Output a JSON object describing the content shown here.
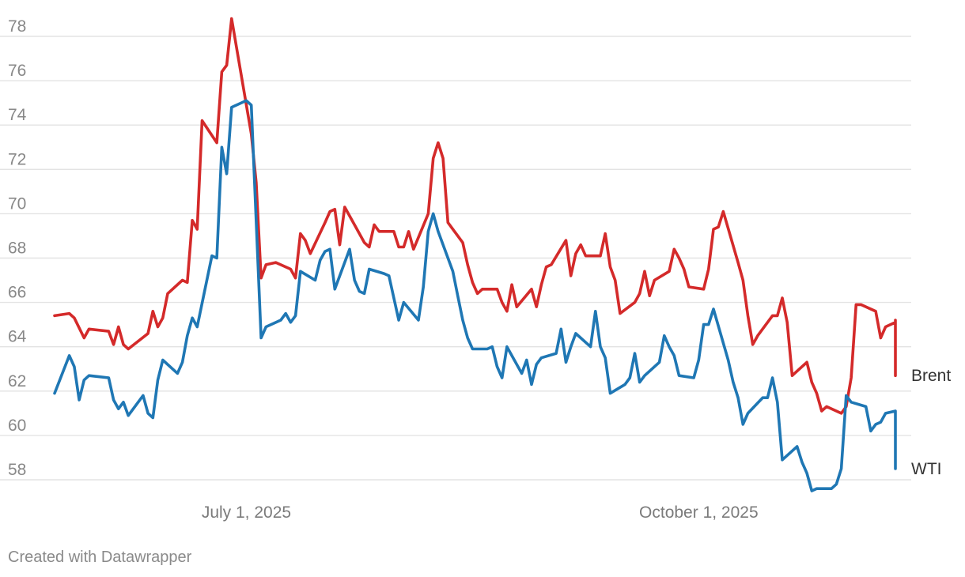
{
  "footer": {
    "credit": "Created with Datawrapper"
  },
  "chart_data": {
    "type": "line",
    "title": "",
    "xlabel": "",
    "ylabel": "",
    "x_domain": [
      "2025-05-23",
      "2025-11-10"
    ],
    "ylim": [
      57,
      79
    ],
    "y_ticks": [
      58,
      60,
      62,
      64,
      66,
      68,
      70,
      72,
      74,
      76,
      78
    ],
    "x_ticks": [
      {
        "date": "2025-07-01",
        "label": "July 1, 2025"
      },
      {
        "date": "2025-10-01",
        "label": "October 1, 2025"
      }
    ],
    "grid": true,
    "legend": "direct labels at line ends, right",
    "series": [
      {
        "name": "Brent",
        "color": "#d42a2a",
        "points": [
          [
            "2025-05-23",
            65.4
          ],
          [
            "2025-05-26",
            65.5
          ],
          [
            "2025-05-27",
            65.3
          ],
          [
            "2025-05-29",
            64.4
          ],
          [
            "2025-05-30",
            64.8
          ],
          [
            "2025-06-03",
            64.7
          ],
          [
            "2025-06-04",
            64.1
          ],
          [
            "2025-06-05",
            64.9
          ],
          [
            "2025-06-06",
            64.1
          ],
          [
            "2025-06-07",
            63.9
          ],
          [
            "2025-06-11",
            64.6
          ],
          [
            "2025-06-12",
            65.6
          ],
          [
            "2025-06-13",
            64.9
          ],
          [
            "2025-06-14",
            65.3
          ],
          [
            "2025-06-15",
            66.4
          ],
          [
            "2025-06-18",
            67.0
          ],
          [
            "2025-06-19",
            66.9
          ],
          [
            "2025-06-20",
            69.7
          ],
          [
            "2025-06-21",
            69.3
          ],
          [
            "2025-06-22",
            74.2
          ],
          [
            "2025-06-25",
            73.2
          ],
          [
            "2025-06-26",
            76.4
          ],
          [
            "2025-06-27",
            76.7
          ],
          [
            "2025-06-28",
            78.8
          ],
          [
            "2025-07-02",
            73.6
          ],
          [
            "2025-07-03",
            71.4
          ],
          [
            "2025-07-04",
            67.1
          ],
          [
            "2025-07-05",
            67.7
          ],
          [
            "2025-07-07",
            67.8
          ],
          [
            "2025-07-10",
            67.5
          ],
          [
            "2025-07-11",
            67.1
          ],
          [
            "2025-07-12",
            69.1
          ],
          [
            "2025-07-13",
            68.8
          ],
          [
            "2025-07-14",
            68.2
          ],
          [
            "2025-07-17",
            69.6
          ],
          [
            "2025-07-18",
            70.1
          ],
          [
            "2025-07-19",
            70.2
          ],
          [
            "2025-07-20",
            68.6
          ],
          [
            "2025-07-21",
            70.3
          ],
          [
            "2025-07-24",
            69.1
          ],
          [
            "2025-07-25",
            68.7
          ],
          [
            "2025-07-26",
            68.5
          ],
          [
            "2025-07-27",
            69.5
          ],
          [
            "2025-07-28",
            69.2
          ],
          [
            "2025-07-31",
            69.2
          ],
          [
            "2025-08-01",
            68.5
          ],
          [
            "2025-08-02",
            68.5
          ],
          [
            "2025-08-03",
            69.2
          ],
          [
            "2025-08-04",
            68.4
          ],
          [
            "2025-08-07",
            70.0
          ],
          [
            "2025-08-08",
            72.5
          ],
          [
            "2025-08-09",
            73.2
          ],
          [
            "2025-08-10",
            72.5
          ],
          [
            "2025-08-11",
            69.6
          ],
          [
            "2025-08-14",
            68.7
          ],
          [
            "2025-08-15",
            67.7
          ],
          [
            "2025-08-16",
            66.9
          ],
          [
            "2025-08-17",
            66.4
          ],
          [
            "2025-08-18",
            66.6
          ],
          [
            "2025-08-21",
            66.6
          ],
          [
            "2025-08-22",
            66.0
          ],
          [
            "2025-08-23",
            65.6
          ],
          [
            "2025-08-24",
            66.8
          ],
          [
            "2025-08-25",
            65.8
          ],
          [
            "2025-08-28",
            66.6
          ],
          [
            "2025-08-29",
            65.8
          ],
          [
            "2025-08-30",
            66.8
          ],
          [
            "2025-08-31",
            67.6
          ],
          [
            "2025-09-01",
            67.7
          ],
          [
            "2025-09-04",
            68.8
          ],
          [
            "2025-09-05",
            67.2
          ],
          [
            "2025-09-06",
            68.2
          ],
          [
            "2025-09-07",
            68.6
          ],
          [
            "2025-09-08",
            68.1
          ],
          [
            "2025-09-11",
            68.1
          ],
          [
            "2025-09-12",
            69.1
          ],
          [
            "2025-09-13",
            67.6
          ],
          [
            "2025-09-14",
            67.0
          ],
          [
            "2025-09-15",
            65.5
          ],
          [
            "2025-09-18",
            66.0
          ],
          [
            "2025-09-19",
            66.4
          ],
          [
            "2025-09-20",
            67.4
          ],
          [
            "2025-09-21",
            66.3
          ],
          [
            "2025-09-22",
            67.0
          ],
          [
            "2025-09-25",
            67.4
          ],
          [
            "2025-09-26",
            68.4
          ],
          [
            "2025-09-27",
            68.0
          ],
          [
            "2025-09-28",
            67.5
          ],
          [
            "2025-09-29",
            66.7
          ],
          [
            "2025-10-02",
            66.6
          ],
          [
            "2025-10-03",
            67.5
          ],
          [
            "2025-10-04",
            69.3
          ],
          [
            "2025-10-05",
            69.4
          ],
          [
            "2025-10-06",
            70.1
          ],
          [
            "2025-10-09",
            67.8
          ],
          [
            "2025-10-10",
            67.0
          ],
          [
            "2025-10-11",
            65.4
          ],
          [
            "2025-10-12",
            64.1
          ],
          [
            "2025-10-13",
            64.5
          ],
          [
            "2025-10-16",
            65.4
          ],
          [
            "2025-10-17",
            65.4
          ],
          [
            "2025-10-18",
            66.2
          ],
          [
            "2025-10-19",
            65.1
          ],
          [
            "2025-10-20",
            62.7
          ],
          [
            "2025-10-23",
            63.3
          ],
          [
            "2025-10-24",
            62.4
          ],
          [
            "2025-10-25",
            61.9
          ],
          [
            "2025-10-26",
            61.1
          ],
          [
            "2025-10-27",
            61.3
          ],
          [
            "2025-10-30",
            61.0
          ],
          [
            "2025-10-31",
            61.3
          ],
          [
            "2025-11-01",
            62.6
          ],
          [
            "2025-11-02",
            65.9
          ],
          [
            "2025-11-03",
            65.9
          ],
          [
            "2025-11-06",
            65.6
          ],
          [
            "2025-11-07",
            64.4
          ],
          [
            "2025-11-08",
            64.9
          ],
          [
            "2025-11-09",
            65.0
          ],
          [
            "2025-11-10",
            65.1
          ]
        ],
        "tail": [
          64.9,
          64.4,
          63.5,
          63.4,
          63.6,
          64.1,
          65.2,
          62.7
        ]
      },
      {
        "name": "WTI",
        "color": "#1f77b4",
        "points": [
          [
            "2025-05-23",
            61.9
          ],
          [
            "2025-05-26",
            63.6
          ],
          [
            "2025-05-27",
            63.1
          ],
          [
            "2025-05-28",
            61.6
          ],
          [
            "2025-05-29",
            62.5
          ],
          [
            "2025-05-30",
            62.7
          ],
          [
            "2025-06-03",
            62.6
          ],
          [
            "2025-06-04",
            61.6
          ],
          [
            "2025-06-05",
            61.2
          ],
          [
            "2025-06-06",
            61.5
          ],
          [
            "2025-06-07",
            60.9
          ],
          [
            "2025-06-10",
            61.8
          ],
          [
            "2025-06-11",
            61.0
          ],
          [
            "2025-06-12",
            60.8
          ],
          [
            "2025-06-13",
            62.5
          ],
          [
            "2025-06-14",
            63.4
          ],
          [
            "2025-06-17",
            62.8
          ],
          [
            "2025-06-18",
            63.3
          ],
          [
            "2025-06-19",
            64.5
          ],
          [
            "2025-06-20",
            65.3
          ],
          [
            "2025-06-21",
            64.9
          ],
          [
            "2025-06-24",
            68.1
          ],
          [
            "2025-06-25",
            68.0
          ],
          [
            "2025-06-26",
            73.0
          ],
          [
            "2025-06-27",
            71.8
          ],
          [
            "2025-06-28",
            74.8
          ],
          [
            "2025-07-01",
            75.1
          ],
          [
            "2025-07-02",
            74.9
          ],
          [
            "2025-07-04",
            64.4
          ],
          [
            "2025-07-05",
            64.9
          ],
          [
            "2025-07-08",
            65.2
          ],
          [
            "2025-07-09",
            65.5
          ],
          [
            "2025-07-10",
            65.1
          ],
          [
            "2025-07-11",
            65.4
          ],
          [
            "2025-07-12",
            67.4
          ],
          [
            "2025-07-15",
            67.0
          ],
          [
            "2025-07-16",
            67.9
          ],
          [
            "2025-07-17",
            68.3
          ],
          [
            "2025-07-18",
            68.4
          ],
          [
            "2025-07-19",
            66.6
          ],
          [
            "2025-07-22",
            68.4
          ],
          [
            "2025-07-23",
            67.0
          ],
          [
            "2025-07-24",
            66.5
          ],
          [
            "2025-07-25",
            66.4
          ],
          [
            "2025-07-26",
            67.5
          ],
          [
            "2025-07-29",
            67.3
          ],
          [
            "2025-07-30",
            67.2
          ],
          [
            "2025-08-01",
            65.2
          ],
          [
            "2025-08-02",
            66.0
          ],
          [
            "2025-08-05",
            65.2
          ],
          [
            "2025-08-06",
            66.7
          ],
          [
            "2025-08-07",
            69.2
          ],
          [
            "2025-08-08",
            70.0
          ],
          [
            "2025-08-09",
            69.2
          ],
          [
            "2025-08-12",
            67.4
          ],
          [
            "2025-08-13",
            66.3
          ],
          [
            "2025-08-14",
            65.2
          ],
          [
            "2025-08-15",
            64.4
          ],
          [
            "2025-08-16",
            63.9
          ],
          [
            "2025-08-19",
            63.9
          ],
          [
            "2025-08-20",
            64.0
          ],
          [
            "2025-08-21",
            63.1
          ],
          [
            "2025-08-22",
            62.6
          ],
          [
            "2025-08-23",
            64.0
          ],
          [
            "2025-08-26",
            62.8
          ],
          [
            "2025-08-27",
            63.4
          ],
          [
            "2025-08-28",
            62.3
          ],
          [
            "2025-08-29",
            63.2
          ],
          [
            "2025-08-30",
            63.5
          ],
          [
            "2025-09-02",
            63.7
          ],
          [
            "2025-09-03",
            64.8
          ],
          [
            "2025-09-04",
            63.3
          ],
          [
            "2025-09-05",
            64.0
          ],
          [
            "2025-09-06",
            64.6
          ],
          [
            "2025-09-09",
            64.0
          ],
          [
            "2025-09-10",
            65.6
          ],
          [
            "2025-09-11",
            64.0
          ],
          [
            "2025-09-12",
            63.5
          ],
          [
            "2025-09-13",
            61.9
          ],
          [
            "2025-09-16",
            62.3
          ],
          [
            "2025-09-17",
            62.6
          ],
          [
            "2025-09-18",
            63.7
          ],
          [
            "2025-09-19",
            62.4
          ],
          [
            "2025-09-20",
            62.7
          ],
          [
            "2025-09-23",
            63.3
          ],
          [
            "2025-09-24",
            64.5
          ],
          [
            "2025-09-25",
            64.0
          ],
          [
            "2025-09-26",
            63.6
          ],
          [
            "2025-09-27",
            62.7
          ],
          [
            "2025-09-30",
            62.6
          ],
          [
            "2025-10-01",
            63.4
          ],
          [
            "2025-10-02",
            65.0
          ],
          [
            "2025-10-03",
            65.0
          ],
          [
            "2025-10-04",
            65.7
          ],
          [
            "2025-10-07",
            63.4
          ],
          [
            "2025-10-08",
            62.4
          ],
          [
            "2025-10-09",
            61.7
          ],
          [
            "2025-10-10",
            60.5
          ],
          [
            "2025-10-11",
            61.0
          ],
          [
            "2025-10-14",
            61.7
          ],
          [
            "2025-10-15",
            61.7
          ],
          [
            "2025-10-16",
            62.6
          ],
          [
            "2025-10-17",
            61.5
          ],
          [
            "2025-10-18",
            58.9
          ],
          [
            "2025-10-21",
            59.5
          ],
          [
            "2025-10-22",
            58.8
          ],
          [
            "2025-10-23",
            58.3
          ],
          [
            "2025-10-24",
            57.5
          ],
          [
            "2025-10-25",
            57.6
          ],
          [
            "2025-10-28",
            57.6
          ],
          [
            "2025-10-29",
            57.8
          ],
          [
            "2025-10-30",
            58.5
          ],
          [
            "2025-10-31",
            61.8
          ],
          [
            "2025-11-01",
            61.5
          ],
          [
            "2025-11-04",
            61.3
          ],
          [
            "2025-11-05",
            60.2
          ],
          [
            "2025-11-06",
            60.5
          ],
          [
            "2025-11-07",
            60.6
          ],
          [
            "2025-11-08",
            61.0
          ],
          [
            "2025-11-10",
            61.1
          ]
        ],
        "tail": [
          60.6,
          59.6,
          59.4,
          59.8,
          60.2,
          61.1,
          58.5
        ]
      }
    ]
  }
}
